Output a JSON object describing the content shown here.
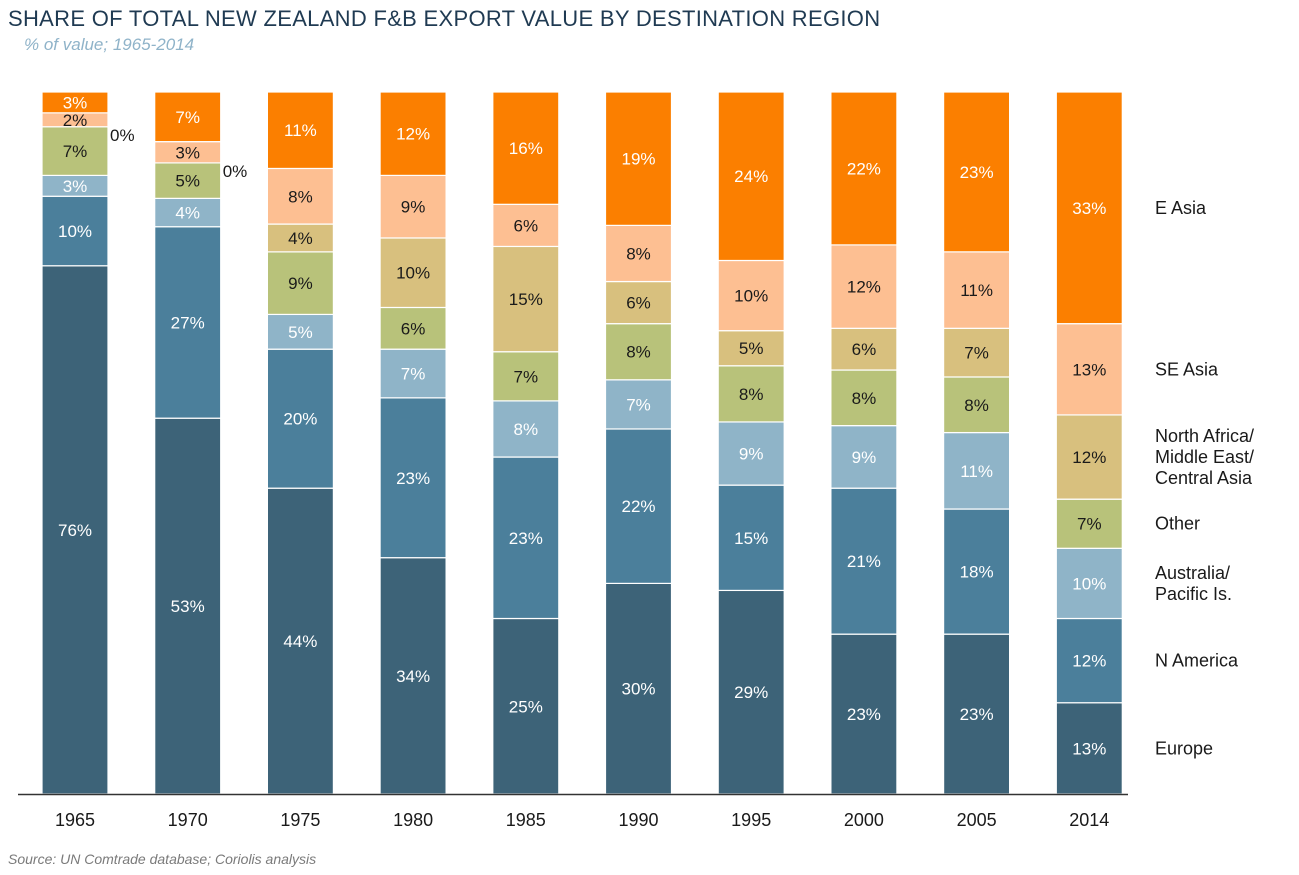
{
  "title": "SHARE OF TOTAL NEW ZEALAND F&B EXPORT VALUE BY DESTINATION REGION",
  "subtitle": "% of value; 1965-2014",
  "source": "Source: UN Comtrade database; Coriolis analysis",
  "chart_data": {
    "type": "bar",
    "stacked": true,
    "normalized_to_100": true,
    "grid": false,
    "legend_placement": "right",
    "categories": [
      "1965",
      "1970",
      "1975",
      "1980",
      "1985",
      "1990",
      "1995",
      "2000",
      "2005",
      "2014"
    ],
    "series": [
      {
        "name": "Europe",
        "color": "#3d6378",
        "values": [
          76,
          53,
          44,
          34,
          25,
          30,
          29,
          23,
          23,
          13
        ]
      },
      {
        "name": "N America",
        "color": "#4b7f9b",
        "values": [
          10,
          27,
          20,
          23,
          23,
          22,
          15,
          21,
          18,
          12
        ]
      },
      {
        "name": "Australia/ Pacific Is.",
        "color": "#8fb4c8",
        "values": [
          3,
          4,
          5,
          7,
          8,
          7,
          9,
          9,
          11,
          10
        ]
      },
      {
        "name": "Other",
        "color": "#b8c27a",
        "values": [
          7,
          5,
          9,
          6,
          7,
          8,
          8,
          8,
          8,
          7
        ]
      },
      {
        "name": "North Africa/ Middle East/ Central Asia",
        "color": "#d8c07e",
        "values": [
          0,
          0,
          4,
          10,
          15,
          6,
          5,
          6,
          7,
          12
        ]
      },
      {
        "name": "SE Asia",
        "color": "#fdbf92",
        "values": [
          2,
          3,
          8,
          9,
          6,
          8,
          10,
          12,
          11,
          13
        ]
      },
      {
        "name": "E Asia",
        "color": "#fb7f00",
        "values": [
          3,
          7,
          11,
          12,
          16,
          19,
          24,
          22,
          23,
          33
        ]
      }
    ],
    "legend_labels": [
      {
        "series": "E Asia",
        "lines": [
          "E Asia"
        ]
      },
      {
        "series": "SE Asia",
        "lines": [
          "SE Asia"
        ]
      },
      {
        "series": "North Africa/ Middle East/ Central Asia",
        "lines": [
          "North Africa/",
          "Middle East/",
          "Central Asia"
        ]
      },
      {
        "series": "Other",
        "lines": [
          "Other"
        ]
      },
      {
        "series": "Australia/ Pacific Is.",
        "lines": [
          "Australia/",
          "Pacific Is."
        ]
      },
      {
        "series": "N America",
        "lines": [
          "N America"
        ]
      },
      {
        "series": "Europe",
        "lines": [
          "Europe"
        ]
      }
    ]
  }
}
